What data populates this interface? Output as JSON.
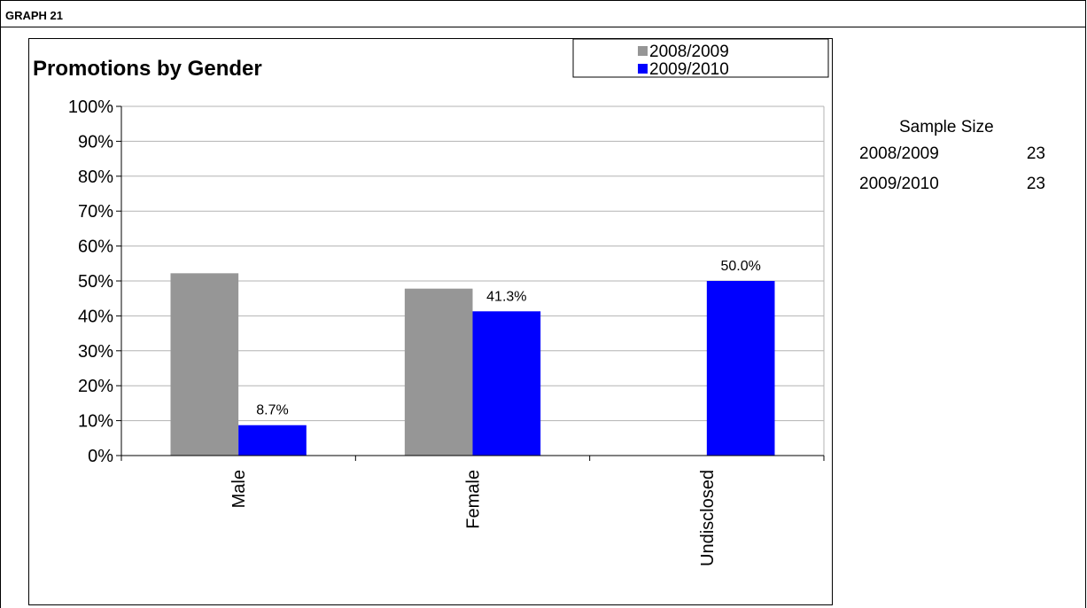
{
  "header": {
    "title": "GRAPH 21"
  },
  "chart_data": {
    "type": "bar",
    "title": "Promotions by Gender",
    "categories": [
      "Male",
      "Female",
      "Undisclosed"
    ],
    "series": [
      {
        "name": "2008/2009",
        "values": [
          52.2,
          47.8,
          0.0
        ],
        "color": "#969696",
        "labels": [
          "",
          "",
          ""
        ]
      },
      {
        "name": "2009/2010",
        "values": [
          8.7,
          41.3,
          50.0
        ],
        "color": "#0000ff",
        "labels": [
          "8.7%",
          "41.3%",
          "50.0%"
        ]
      }
    ],
    "ylim": [
      0,
      100
    ],
    "yticks": [
      "0%",
      "10%",
      "20%",
      "30%",
      "40%",
      "50%",
      "60%",
      "70%",
      "80%",
      "90%",
      "100%"
    ],
    "grid": true,
    "legend": "top-right"
  },
  "sample_size": {
    "title": "Sample Size",
    "rows": [
      {
        "label": "2008/2009",
        "value": "23"
      },
      {
        "label": "2009/2010",
        "value": "23"
      }
    ]
  }
}
